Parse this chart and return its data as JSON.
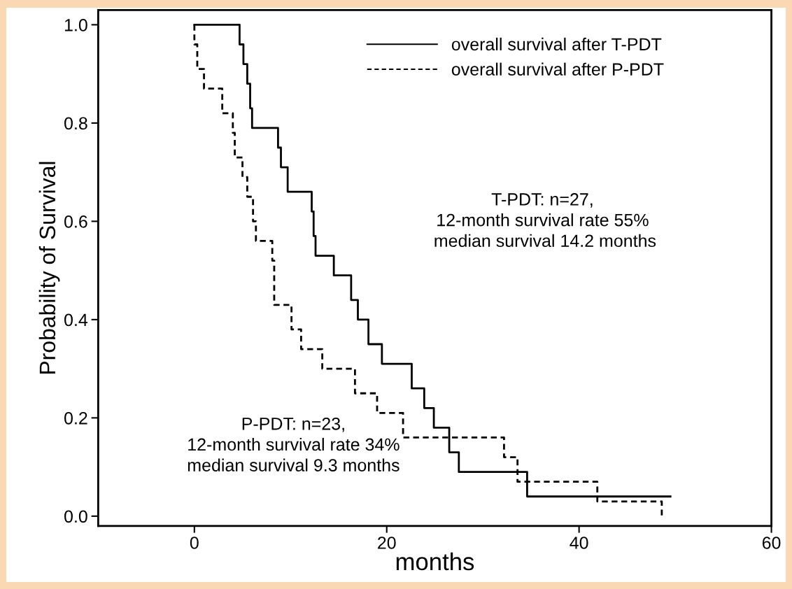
{
  "chart_data": {
    "type": "step",
    "xlabel": "months",
    "ylabel": "Probability of Survival",
    "xlim": [
      -10,
      60
    ],
    "xticks": [
      0,
      20,
      40,
      60
    ],
    "ylim": [
      -0.02,
      1.03
    ],
    "yticks": [
      {
        "value": 0,
        "label": "0.0"
      },
      {
        "value": 0.2,
        "label": "0.2"
      },
      {
        "value": 0.4,
        "label": "0.4"
      },
      {
        "value": 0.6,
        "label": "0.6"
      },
      {
        "value": 0.8,
        "label": "0.8"
      },
      {
        "value": 1,
        "label": "1.0"
      }
    ],
    "grid": false,
    "legend": "top",
    "series": [
      {
        "name": "overall survival after T-PDT",
        "color": "#000000",
        "line_style": "solid",
        "x": [
          0,
          4.7,
          5.1,
          5.5,
          5.8,
          6.0,
          8.7,
          9.0,
          9.7,
          12.2,
          12.4,
          12.6,
          14.5,
          16.3,
          17.0,
          18.1,
          19.5,
          22.6,
          23.9,
          24.9,
          26.5,
          27.5,
          34.6,
          49.5
        ],
        "values": [
          1.0,
          0.96,
          0.92,
          0.88,
          0.83,
          0.79,
          0.75,
          0.71,
          0.66,
          0.62,
          0.57,
          0.53,
          0.49,
          0.44,
          0.4,
          0.35,
          0.31,
          0.26,
          0.22,
          0.18,
          0.13,
          0.09,
          0.04,
          0.04
        ]
      },
      {
        "name": "overall survival after P-PDT",
        "color": "#000000",
        "line_style": "dashed",
        "x": [
          0,
          0,
          0.3,
          1.0,
          2.9,
          4.0,
          4.2,
          5.0,
          5.5,
          6.1,
          6.4,
          8.1,
          8.3,
          10.1,
          11.1,
          13.3,
          16.7,
          19.0,
          21.7,
          32.2,
          33.6,
          41.9,
          48.6
        ],
        "values": [
          1.0,
          0.96,
          0.91,
          0.87,
          0.82,
          0.78,
          0.73,
          0.69,
          0.65,
          0.6,
          0.56,
          0.52,
          0.43,
          0.38,
          0.34,
          0.3,
          0.25,
          0.21,
          0.16,
          0.12,
          0.07,
          0.03,
          0.0
        ]
      }
    ],
    "annotations": [
      "T-PDT: n=27,\n12-month survival rate 55%\n median survival 14.2 months",
      "P-PDT: n=23,\n12-month survival rate 34%\nmedian survival 9.3 months"
    ]
  }
}
